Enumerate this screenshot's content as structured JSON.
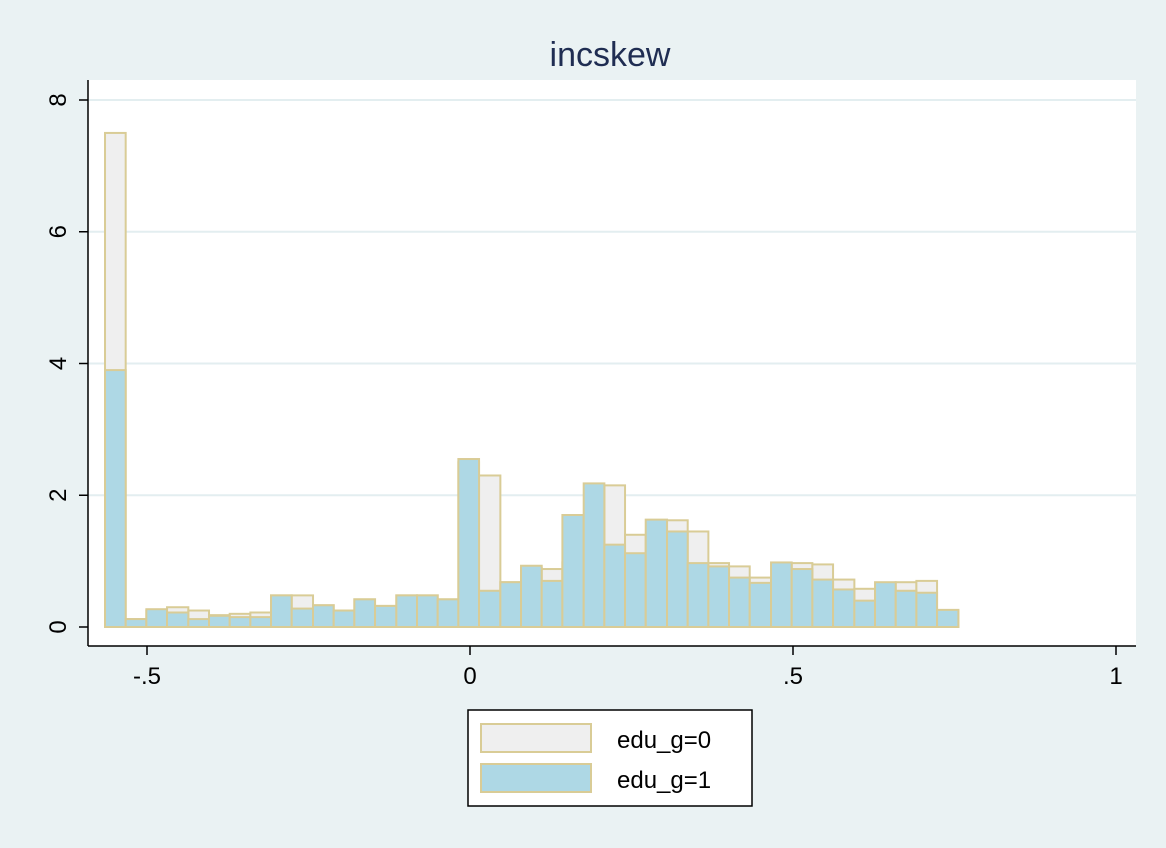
{
  "chart_data": {
    "type": "bar",
    "title": "incskew",
    "xlabel": "",
    "ylabel": "",
    "xlim": [
      -0.6,
      1.0
    ],
    "ylim": [
      0,
      8
    ],
    "x_ticks": [
      {
        "value": -0.5,
        "label": "-.5"
      },
      {
        "value": 0,
        "label": "0"
      },
      {
        "value": 0.5,
        "label": ".5"
      },
      {
        "value": 1,
        "label": "1"
      }
    ],
    "y_ticks": [
      {
        "value": 0,
        "label": "0"
      },
      {
        "value": 2,
        "label": "2"
      },
      {
        "value": 4,
        "label": "4"
      },
      {
        "value": 6,
        "label": "6"
      },
      {
        "value": 8,
        "label": "8"
      }
    ],
    "grid": true,
    "legend_position": "bottom",
    "series": [
      {
        "name": "edu_g=0",
        "color": "#efefef",
        "edge_color": "#d9cc96",
        "bins": [
          [
            -0.565,
            -0.533,
            7.5
          ],
          [
            -0.533,
            -0.501,
            0.12
          ],
          [
            -0.501,
            -0.469,
            0.25
          ],
          [
            -0.469,
            -0.436,
            0.3
          ],
          [
            -0.436,
            -0.404,
            0.25
          ],
          [
            -0.404,
            -0.372,
            0.18
          ],
          [
            -0.372,
            -0.34,
            0.2
          ],
          [
            -0.34,
            -0.308,
            0.22
          ],
          [
            -0.308,
            -0.276,
            0.48
          ],
          [
            -0.276,
            -0.243,
            0.48
          ],
          [
            -0.243,
            -0.211,
            0.33
          ],
          [
            -0.211,
            -0.179,
            0.25
          ],
          [
            -0.179,
            -0.147,
            0.42
          ],
          [
            -0.147,
            -0.114,
            0.32
          ],
          [
            -0.114,
            -0.082,
            0.48
          ],
          [
            -0.082,
            -0.05,
            0.48
          ],
          [
            -0.05,
            -0.018,
            0.42
          ],
          [
            -0.018,
            0.014,
            2.5
          ],
          [
            0.014,
            0.047,
            2.3
          ],
          [
            0.047,
            0.079,
            0.68
          ],
          [
            0.079,
            0.111,
            0.9
          ],
          [
            0.111,
            0.143,
            0.88
          ],
          [
            0.143,
            0.176,
            0.98
          ],
          [
            0.176,
            0.208,
            1.7
          ],
          [
            0.208,
            0.24,
            2.15
          ],
          [
            0.24,
            0.272,
            1.4
          ],
          [
            0.272,
            0.305,
            1.12
          ],
          [
            0.305,
            0.337,
            1.62
          ],
          [
            0.337,
            0.369,
            1.45
          ],
          [
            0.369,
            0.401,
            0.97
          ],
          [
            0.401,
            0.433,
            0.92
          ],
          [
            0.433,
            0.466,
            0.75
          ],
          [
            0.466,
            0.498,
            0.68
          ],
          [
            0.498,
            0.53,
            0.97
          ],
          [
            0.53,
            0.562,
            0.95
          ],
          [
            0.562,
            0.595,
            0.72
          ],
          [
            0.595,
            0.627,
            0.58
          ],
          [
            0.627,
            0.659,
            0.58
          ],
          [
            0.659,
            0.691,
            0.68
          ],
          [
            0.691,
            0.723,
            0.7
          ],
          [
            0.723,
            0.756,
            0.25
          ]
        ]
      },
      {
        "name": "edu_g=1",
        "color": "#aed8e5",
        "edge_color": "#d9cc96",
        "bins": [
          [
            -0.565,
            -0.533,
            3.9
          ],
          [
            -0.533,
            -0.501,
            0.12
          ],
          [
            -0.501,
            -0.469,
            0.27
          ],
          [
            -0.469,
            -0.436,
            0.22
          ],
          [
            -0.436,
            -0.404,
            0.12
          ],
          [
            -0.404,
            -0.372,
            0.17
          ],
          [
            -0.372,
            -0.34,
            0.15
          ],
          [
            -0.34,
            -0.308,
            0.15
          ],
          [
            -0.308,
            -0.276,
            0.48
          ],
          [
            -0.276,
            -0.243,
            0.28
          ],
          [
            -0.243,
            -0.211,
            0.33
          ],
          [
            -0.211,
            -0.179,
            0.25
          ],
          [
            -0.179,
            -0.147,
            0.42
          ],
          [
            -0.147,
            -0.114,
            0.32
          ],
          [
            -0.114,
            -0.082,
            0.48
          ],
          [
            -0.082,
            -0.05,
            0.48
          ],
          [
            -0.05,
            -0.018,
            0.42
          ],
          [
            -0.018,
            0.014,
            2.55
          ],
          [
            0.014,
            0.047,
            0.55
          ],
          [
            0.047,
            0.079,
            0.68
          ],
          [
            0.079,
            0.111,
            0.93
          ],
          [
            0.111,
            0.143,
            0.7
          ],
          [
            0.143,
            0.176,
            1.7
          ],
          [
            0.176,
            0.208,
            2.18
          ],
          [
            0.208,
            0.24,
            1.25
          ],
          [
            0.24,
            0.272,
            1.12
          ],
          [
            0.272,
            0.305,
            1.63
          ],
          [
            0.305,
            0.337,
            1.45
          ],
          [
            0.337,
            0.369,
            0.97
          ],
          [
            0.369,
            0.401,
            0.92
          ],
          [
            0.401,
            0.433,
            0.75
          ],
          [
            0.433,
            0.466,
            0.67
          ],
          [
            0.466,
            0.498,
            0.98
          ],
          [
            0.498,
            0.53,
            0.88
          ],
          [
            0.53,
            0.562,
            0.72
          ],
          [
            0.562,
            0.595,
            0.57
          ],
          [
            0.595,
            0.627,
            0.4
          ],
          [
            0.627,
            0.659,
            0.68
          ],
          [
            0.659,
            0.691,
            0.55
          ],
          [
            0.691,
            0.723,
            0.52
          ],
          [
            0.723,
            0.756,
            0.26
          ]
        ]
      }
    ]
  }
}
